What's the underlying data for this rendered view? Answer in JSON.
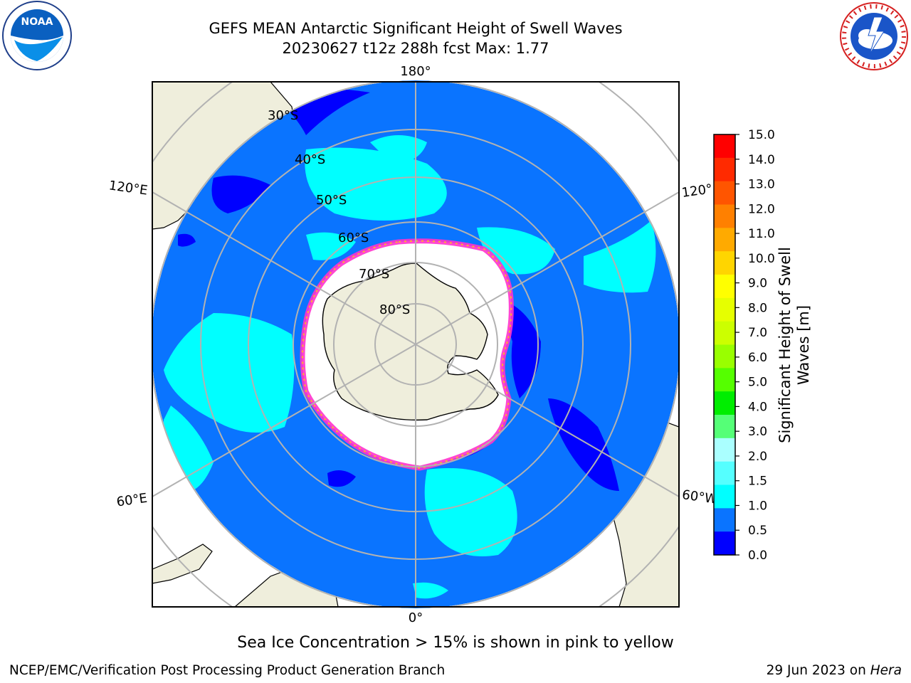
{
  "title_line1": "GEFS MEAN Antarctic Significant Height of Swell Waves",
  "title_line2": "20230627 t12z 288h fcst   Max: 1.77",
  "logos": {
    "left": {
      "icon": "noaa-logo",
      "text": "NOAA"
    },
    "right": {
      "icon": "national-weather-service-logo"
    }
  },
  "map": {
    "projection": "south-polar-stereographic",
    "lat_labels": [
      "30°S",
      "40°S",
      "50°S",
      "60°S",
      "70°S",
      "80°S"
    ],
    "lon_labels": {
      "top": "180°",
      "bottom": "0°",
      "left_upper": "120°E",
      "left_lower": "60°E",
      "right_upper": "120°",
      "right_lower": "60°W"
    },
    "colors": {
      "land": "#efeedc",
      "ocean_low": "#0a74ff",
      "ocean_lowest": "#0000ff",
      "ocean_mid": "#00ffff",
      "ice": "#ffffff",
      "ice_edge": "#ff33cc",
      "grid": "#b2b2b2"
    }
  },
  "colorbar": {
    "label": "Significant Height of Swell Waves [m]",
    "ticks": [
      "15.0",
      "14.0",
      "13.0",
      "12.0",
      "11.0",
      "10.0",
      "9.0",
      "8.0",
      "7.0",
      "6.0",
      "5.0",
      "4.0",
      "3.0",
      "2.0",
      "1.5",
      "1.0",
      "0.5",
      "0.0"
    ],
    "colors": [
      "#ff0000",
      "#ff2a00",
      "#ff5500",
      "#ff8000",
      "#ffaa00",
      "#ffd500",
      "#ffff00",
      "#e6ff00",
      "#ccff00",
      "#99ff00",
      "#55ff00",
      "#00ee00",
      "#55ff77",
      "#aaffff",
      "#55ffff",
      "#00ffff",
      "#0a74ff",
      "#0000ff"
    ]
  },
  "caption": "Sea Ice Concentration > 15% is shown in pink to yellow",
  "footer_left": "NCEP/EMC/Verification Post Processing Product Generation Branch",
  "footer_right_date": "29 Jun 2023 on ",
  "footer_right_host": "Hera"
}
